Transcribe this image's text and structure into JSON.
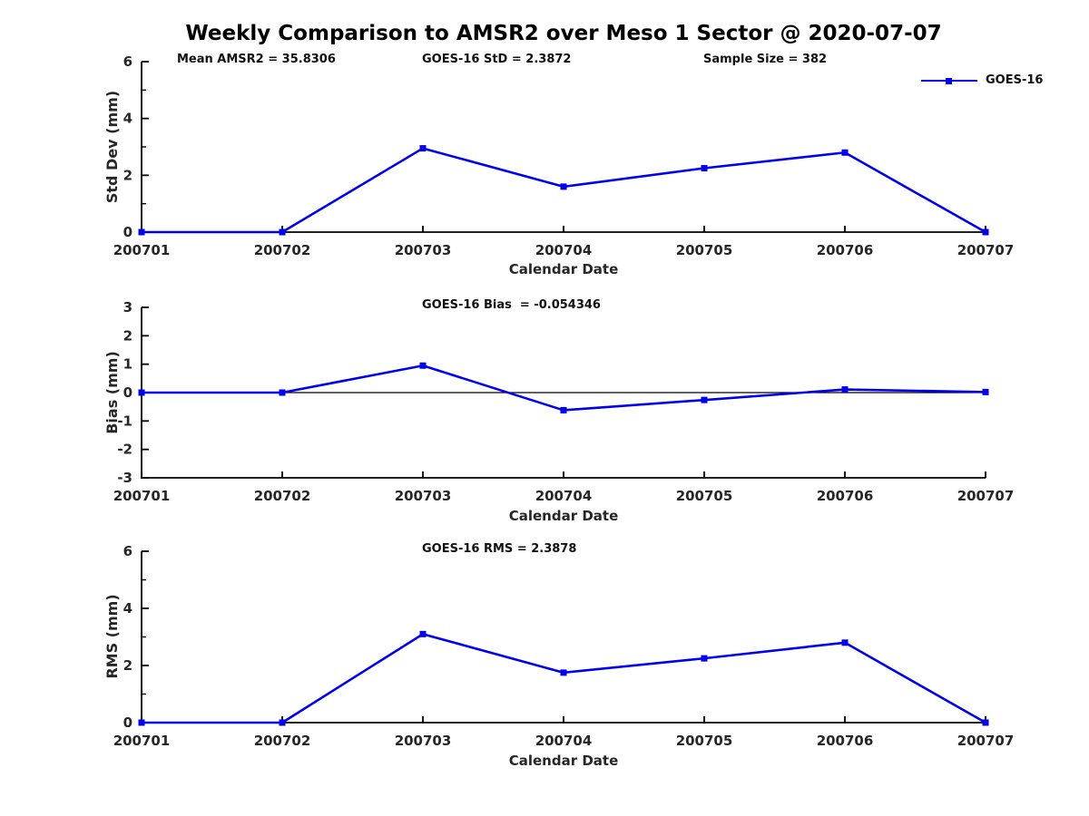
{
  "title": "Weekly Comparison to AMSR2 over Meso 1 Sector @ 2020-07-07",
  "colors": {
    "line": "#0000EE",
    "axis": "#000000",
    "label_text": "#262626",
    "annotation_text": "#111111"
  },
  "chart_data": [
    {
      "id": "std_dev",
      "type": "line",
      "title": "",
      "categories": [
        "200701",
        "200702",
        "200703",
        "200704",
        "200705",
        "200706",
        "200707"
      ],
      "series": [
        {
          "name": "GOES-16",
          "values": [
            0.0,
            0.0,
            2.95,
            1.6,
            2.25,
            2.8,
            0.0
          ]
        }
      ],
      "xlabel": "Calendar Date",
      "ylabel": "Std Dev (mm)",
      "ylim": [
        0,
        6
      ],
      "yticks": [
        0,
        2,
        4,
        6
      ],
      "yticks_minor": [
        1,
        3,
        5
      ],
      "grid": false,
      "zero_line": false,
      "annotations": [
        "Mean AMSR2 = 35.8306",
        "GOES-16 StD = 2.3872",
        "Sample Size = 382"
      ],
      "legend": {
        "position": "top-right",
        "entries": [
          "GOES-16"
        ]
      }
    },
    {
      "id": "bias",
      "type": "line",
      "title": "",
      "categories": [
        "200701",
        "200702",
        "200703",
        "200704",
        "200705",
        "200706",
        "200707"
      ],
      "series": [
        {
          "name": "GOES-16",
          "values": [
            0.0,
            0.0,
            0.95,
            -0.62,
            -0.26,
            0.11,
            0.02
          ]
        }
      ],
      "xlabel": "Calendar Date",
      "ylabel": "Bias (mm)",
      "ylim": [
        -3,
        3
      ],
      "yticks": [
        -3,
        -2,
        -1,
        0,
        1,
        2,
        3
      ],
      "yticks_minor": [],
      "grid": false,
      "zero_line": true,
      "annotations": [
        "GOES-16 Bias  = -0.054346"
      ]
    },
    {
      "id": "rms",
      "type": "line",
      "title": "",
      "categories": [
        "200701",
        "200702",
        "200703",
        "200704",
        "200705",
        "200706",
        "200707"
      ],
      "series": [
        {
          "name": "GOES-16",
          "values": [
            0.0,
            0.0,
            3.1,
            1.75,
            2.25,
            2.8,
            0.0
          ]
        }
      ],
      "xlabel": "Calendar Date",
      "ylabel": "RMS (mm)",
      "ylim": [
        0,
        6
      ],
      "yticks": [
        0,
        2,
        4,
        6
      ],
      "yticks_minor": [
        1,
        3,
        5
      ],
      "grid": false,
      "zero_line": false,
      "annotations": [
        "GOES-16 RMS = 2.3878"
      ]
    }
  ]
}
